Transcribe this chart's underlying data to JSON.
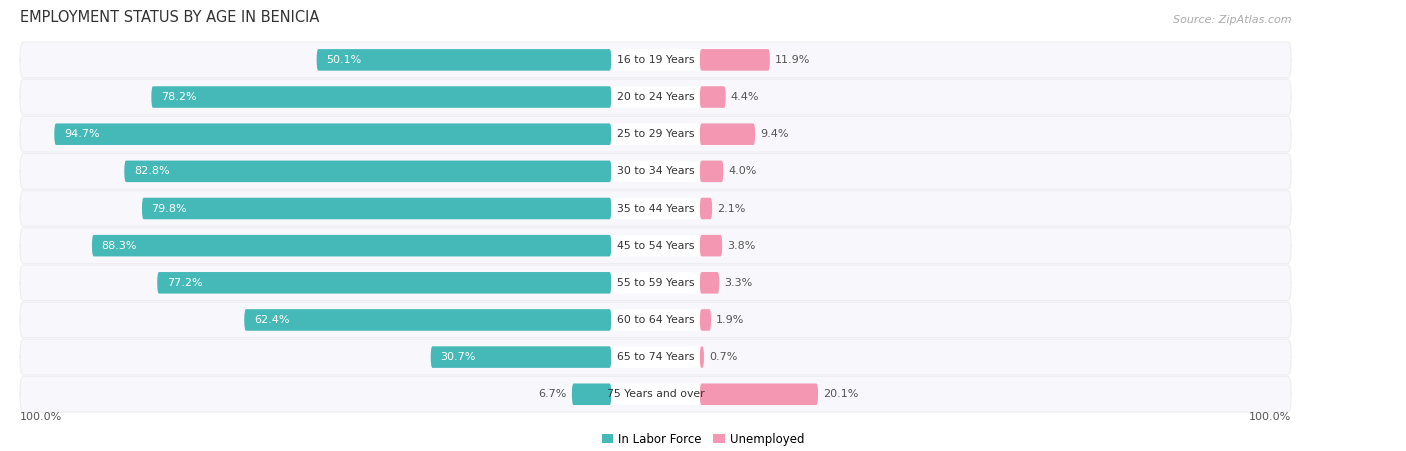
{
  "title": "EMPLOYMENT STATUS BY AGE IN BENICIA",
  "source": "Source: ZipAtlas.com",
  "categories": [
    "16 to 19 Years",
    "20 to 24 Years",
    "25 to 29 Years",
    "30 to 34 Years",
    "35 to 44 Years",
    "45 to 54 Years",
    "55 to 59 Years",
    "60 to 64 Years",
    "65 to 74 Years",
    "75 Years and over"
  ],
  "labor_force": [
    50.1,
    78.2,
    94.7,
    82.8,
    79.8,
    88.3,
    77.2,
    62.4,
    30.7,
    6.7
  ],
  "unemployed": [
    11.9,
    4.4,
    9.4,
    4.0,
    2.1,
    3.8,
    3.3,
    1.9,
    0.7,
    20.1
  ],
  "labor_force_color": "#45b8b8",
  "unemployed_color": "#f497b2",
  "row_bg_color": "#ededf2",
  "row_bg_inner": "#f8f7fb",
  "label_color_inside": "#ffffff",
  "label_color_outside": "#555555",
  "axis_label_left": "100.0%",
  "axis_label_right": "100.0%",
  "legend_labor": "In Labor Force",
  "legend_unemployed": "Unemployed",
  "title_fontsize": 10.5,
  "source_fontsize": 8,
  "bar_label_fontsize": 8,
  "category_fontsize": 7.8,
  "legend_fontsize": 8.5,
  "label_inside_threshold": 20
}
